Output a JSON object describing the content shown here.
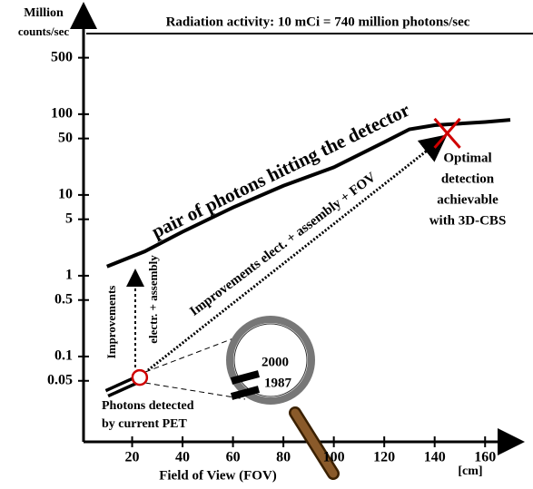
{
  "chart_data": {
    "type": "line",
    "title": "Radiation activity: 10 mCi = 740 million photons/sec",
    "ylabel": [
      "Million",
      "counts/sec"
    ],
    "xlabel": "Field of View (FOV)",
    "xunit": "[cm]",
    "log_y": true,
    "xlim": [
      0,
      170
    ],
    "xticks": [
      20,
      40,
      60,
      80,
      100,
      120,
      140,
      160
    ],
    "ylim": [
      0.01,
      2000
    ],
    "yticks": [
      500,
      100,
      50,
      10,
      5,
      1,
      0.5,
      0.1,
      0.05
    ],
    "series": [
      {
        "color": "#000000",
        "x": [
          10,
          25,
          40,
          60,
          80,
          100,
          120,
          130,
          140,
          160,
          170
        ],
        "values": [
          1.3,
          2,
          3.5,
          7,
          13,
          22,
          45,
          65,
          73,
          80,
          85
        ]
      },
      {
        "color": "#000000",
        "x": [
          10,
          21
        ],
        "values": [
          0.035,
          0.05
        ]
      }
    ],
    "points": [
      {
        "shape": "circle",
        "color": "#d00000",
        "x": 23,
        "y": 0.055
      },
      {
        "shape": "cross",
        "color": "#d00000",
        "x": 145,
        "y": 58
      }
    ],
    "annotations": {
      "curve": "pair of photons hitting the detector",
      "diagonal": "Improvements elect. + assembly + FOV",
      "vertical1": "Improvements",
      "vertical2": "electr. + assembly",
      "current": [
        "Photons detected",
        "by current PET"
      ],
      "optimal": [
        "Optimal",
        "detection",
        "achievable",
        "with 3D-CBS"
      ],
      "lens": [
        "2000",
        "1987"
      ]
    }
  }
}
